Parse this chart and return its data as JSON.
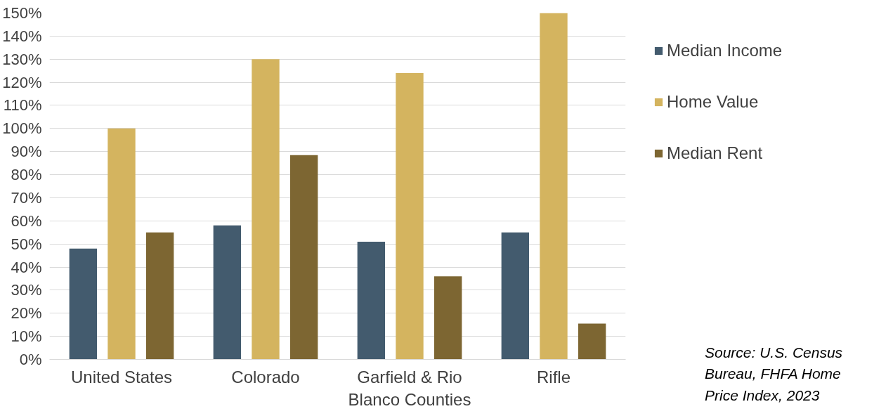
{
  "chart_data": {
    "type": "bar",
    "categories": [
      "United States",
      "Colorado",
      "Garfield & Rio Blanco Counties",
      "Rifle"
    ],
    "series": [
      {
        "name": "Median Income",
        "color": "#435b6e",
        "values": [
          48,
          58,
          51,
          55
        ]
      },
      {
        "name": "Home Value",
        "color": "#d4b45f",
        "values": [
          100,
          130,
          124,
          150
        ]
      },
      {
        "name": "Median Rent",
        "color": "#7d6632",
        "values": [
          55,
          88.5,
          36,
          15.5
        ]
      }
    ],
    "ylim": [
      0,
      150
    ],
    "yticks": [
      {
        "value": 0,
        "label": "0%"
      },
      {
        "value": 10,
        "label": "10%"
      },
      {
        "value": 20,
        "label": "20%"
      },
      {
        "value": 30,
        "label": "30%"
      },
      {
        "value": 40,
        "label": "40%"
      },
      {
        "value": 50,
        "label": "50%"
      },
      {
        "value": 60,
        "label": "60%"
      },
      {
        "value": 70,
        "label": "70%"
      },
      {
        "value": 80,
        "label": "80%"
      },
      {
        "value": 90,
        "label": "90%"
      },
      {
        "value": 100,
        "label": "100%"
      },
      {
        "value": 110,
        "label": "110%"
      },
      {
        "value": 120,
        "label": "120%"
      },
      {
        "value": 130,
        "label": "130%"
      },
      {
        "value": 140,
        "label": "140%"
      },
      {
        "value": 150,
        "label": "150%"
      }
    ],
    "grid": "y",
    "legend": "right",
    "annotations": [
      "Source: U.S. Census Bureau, FHFA Home Price Index, 2023"
    ]
  }
}
